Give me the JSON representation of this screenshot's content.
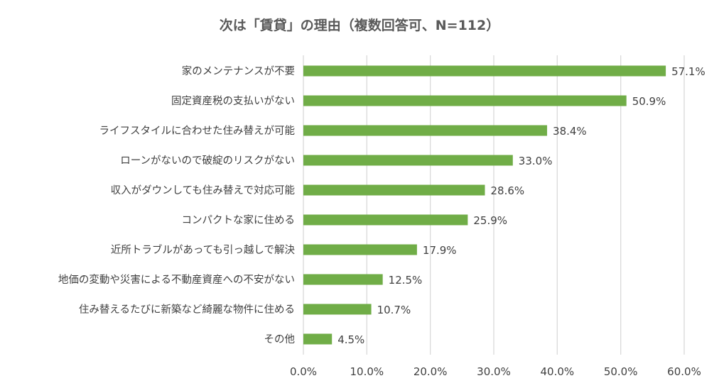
{
  "chart_data": {
    "type": "bar",
    "orientation": "horizontal",
    "title": "次は「賃貸」の理由（複数回答可、N=112）",
    "categories": [
      "家のメンテナンスが不要",
      "固定資産税の支払いがない",
      "ライフスタイルに合わせた住み替えが可能",
      "ローンがないので破綻のリスクがない",
      "収入がダウンしても住み替えで対応可能",
      "コンパクトな家に住める",
      "近所トラブルがあっても引っ越しで解決",
      "地価の変動や災害による不動産資産への不安がない",
      "住み替えるたびに新築など綺麗な物件に住める",
      "その他"
    ],
    "values": [
      57.1,
      50.9,
      38.4,
      33.0,
      28.6,
      25.9,
      17.9,
      12.5,
      10.7,
      4.5
    ],
    "value_labels": [
      "57.1%",
      "50.9%",
      "38.4%",
      "33.0%",
      "28.6%",
      "25.9%",
      "17.9%",
      "12.5%",
      "10.7%",
      "4.5%"
    ],
    "xlim": [
      0,
      60
    ],
    "xticks": [
      0,
      10,
      20,
      30,
      40,
      50,
      60
    ],
    "xtick_labels": [
      "0.0%",
      "10.0%",
      "20.0%",
      "30.0%",
      "40.0%",
      "50.0%",
      "60.0%"
    ],
    "grid": "vertical",
    "legend": "none",
    "colors": {
      "bar": "#70AD47",
      "grid": "#D9D9D9",
      "text": "#404040",
      "title": "#595959"
    }
  }
}
